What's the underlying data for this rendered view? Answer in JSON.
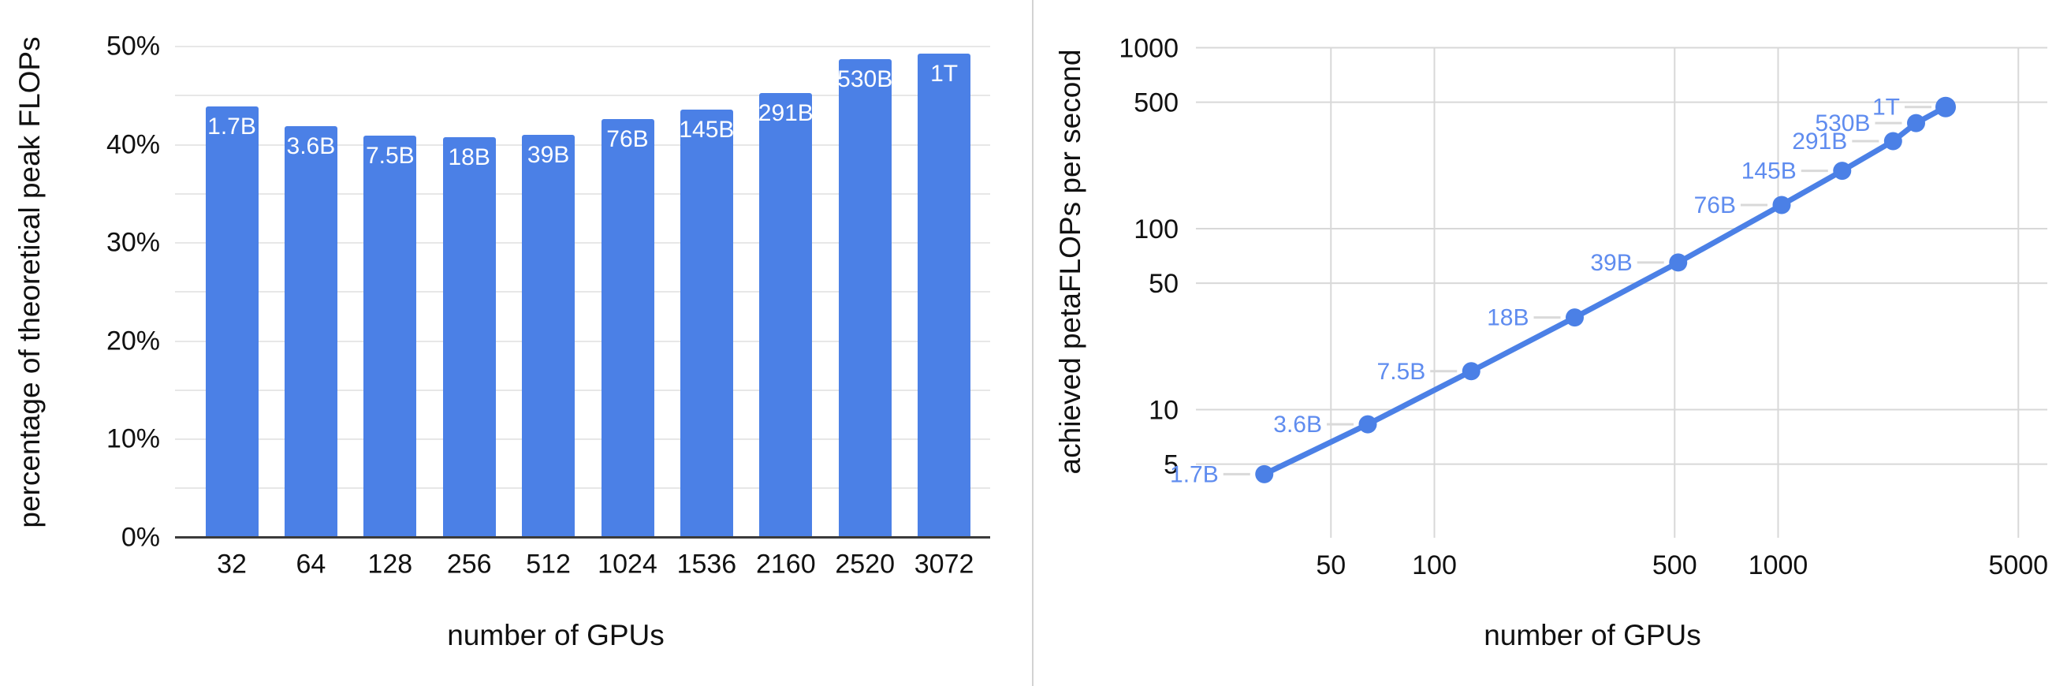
{
  "chart_data": [
    {
      "type": "bar",
      "title": "",
      "categories": [
        "32",
        "64",
        "128",
        "256",
        "512",
        "1024",
        "1536",
        "2160",
        "2520",
        "3072"
      ],
      "values": [
        43.9,
        41.9,
        40.9,
        40.8,
        41.0,
        42.6,
        43.6,
        45.3,
        48.7,
        49.3
      ],
      "bar_labels": [
        "1.7B",
        "3.6B",
        "7.5B",
        "18B",
        "39B",
        "76B",
        "145B",
        "291B",
        "530B",
        "1T"
      ],
      "xlabel": "number of GPUs",
      "ylabel": "percentage of theoretical peak FLOPs",
      "ylim": [
        0,
        50
      ],
      "y_tick_labels": [
        "0%",
        "10%",
        "20%",
        "30%",
        "40%",
        "50%"
      ],
      "y_tick_values": [
        0,
        10,
        20,
        30,
        40,
        50
      ],
      "gridline_step_pct": 5,
      "grid": "horizontal-only",
      "bar_color": "#4b80e6",
      "bar_value_label_color": "#ffffff"
    },
    {
      "type": "line",
      "title": "",
      "x": [
        32,
        64,
        128,
        256,
        512,
        1024,
        1536,
        2160,
        2520,
        3072
      ],
      "values": [
        4.4,
        8.3,
        16.3,
        32.3,
        65.0,
        135.2,
        208.9,
        304.6,
        383.0,
        470.1
      ],
      "point_labels": [
        "1.7B",
        "3.6B",
        "7.5B",
        "18B",
        "39B",
        "76B",
        "145B",
        "291B",
        "530B",
        "1T"
      ],
      "xlabel": "number of GPUs",
      "ylabel": "achieved petaFLOPs per second",
      "x_scale": "log",
      "y_scale": "log",
      "x_tick_labels": [
        "50",
        "100",
        "500",
        "1000",
        "5000"
      ],
      "x_tick_values": [
        50,
        100,
        500,
        1000,
        5000
      ],
      "y_tick_labels": [
        "5",
        "10",
        "50",
        "100",
        "500",
        "1000"
      ],
      "y_tick_values": [
        5,
        10,
        50,
        100,
        500,
        1000
      ],
      "xlim": [
        28,
        6000
      ],
      "ylim": [
        3.5,
        1100
      ],
      "grid": "on",
      "legend": "none",
      "line_color": "#4b80e6",
      "point_label_color": "#5f8cef"
    }
  ]
}
